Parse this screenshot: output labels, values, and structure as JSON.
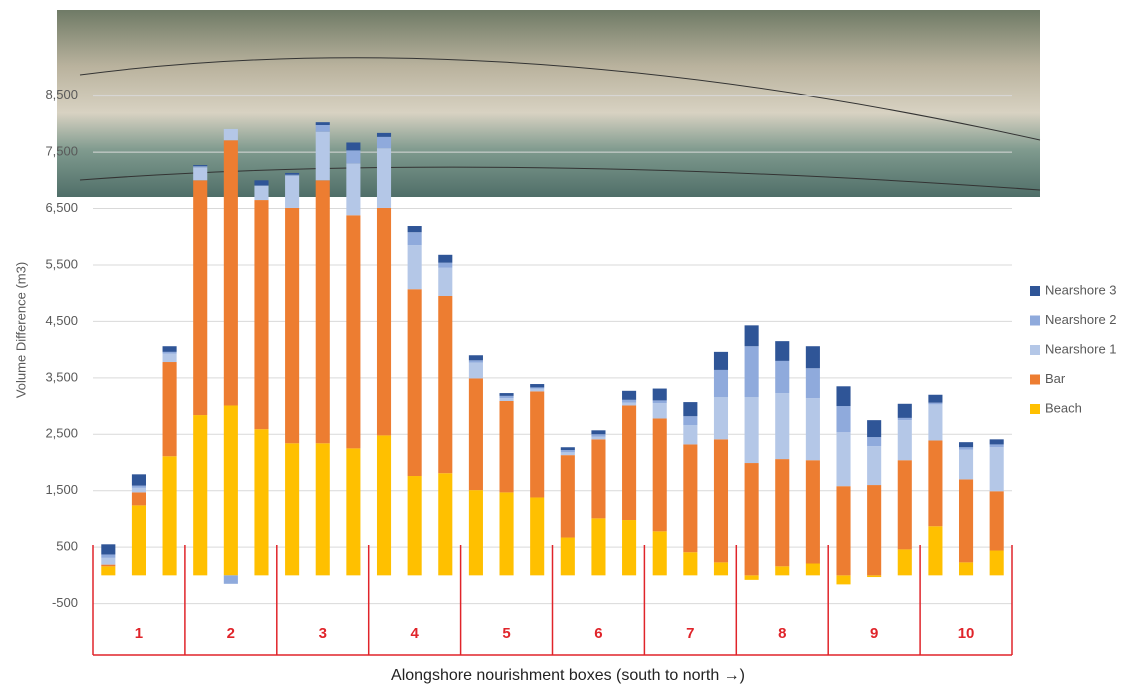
{
  "chart_data": {
    "type": "stacked_bar",
    "y_label": "Volume Difference (m3)",
    "x_label": "Alongshore nourishment boxes (south to north →)",
    "groups": [
      "1",
      "2",
      "3",
      "4",
      "5",
      "6",
      "7",
      "8",
      "9",
      "10"
    ],
    "categories": [
      null,
      null,
      null,
      null,
      null,
      null,
      null,
      null,
      null,
      null,
      null,
      null,
      null,
      null,
      null,
      null,
      null,
      null,
      null,
      null,
      null,
      null,
      null,
      null,
      null,
      null,
      null,
      null,
      null,
      null
    ],
    "series": [
      {
        "name": "Beach",
        "color": "#ffc000",
        "values": [
          160,
          1240,
          2110,
          2840,
          3010,
          2590,
          2340,
          2340,
          2250,
          2480,
          1760,
          1810,
          1510,
          1470,
          1380,
          670,
          1010,
          980,
          780,
          410,
          230,
          -80,
          160,
          210,
          -160,
          -30,
          460,
          870,
          230,
          440
        ]
      },
      {
        "name": "Bar",
        "color": "#ed7d31",
        "values": [
          30,
          230,
          1670,
          4160,
          4700,
          4060,
          4170,
          4660,
          4130,
          4030,
          3310,
          3140,
          1980,
          1620,
          1880,
          1460,
          1400,
          2030,
          2000,
          1910,
          2180,
          1990,
          1900,
          1830,
          1580,
          1600,
          1580,
          1520,
          1470,
          1050
        ]
      },
      {
        "name": "Nearshore 1",
        "color": "#b4c7e7",
        "values": [
          120,
          80,
          150,
          230,
          200,
          250,
          570,
          860,
          920,
          1060,
          780,
          500,
          280,
          50,
          50,
          50,
          50,
          50,
          270,
          340,
          750,
          1170,
          1170,
          1100,
          960,
          690,
          710,
          640,
          530,
          780
        ]
      },
      {
        "name": "Nearshore 2",
        "color": "#8faadc",
        "values": [
          60,
          40,
          30,
          20,
          -150,
          10,
          20,
          120,
          230,
          200,
          230,
          90,
          40,
          40,
          20,
          40,
          40,
          50,
          50,
          160,
          480,
          900,
          570,
          530,
          460,
          160,
          40,
          30,
          40,
          50
        ]
      },
      {
        "name": "Nearshore 3",
        "color": "#2f5597",
        "values": [
          180,
          200,
          100,
          20,
          0,
          90,
          30,
          50,
          140,
          70,
          110,
          140,
          90,
          50,
          60,
          50,
          70,
          160,
          210,
          250,
          320,
          370,
          350,
          390,
          350,
          300,
          250,
          140,
          90,
          90
        ]
      }
    ],
    "ylim": [
      -1500,
      10000
    ],
    "yticks": [
      {
        "value": -500,
        "label": "-500"
      },
      500,
      {
        "value": 1500,
        "label": "1,500"
      },
      {
        "value": 2500,
        "label": "2,500"
      },
      {
        "value": 3500,
        "label": "3,500"
      },
      {
        "value": 4500,
        "label": "4,500"
      },
      {
        "value": 5500,
        "label": "5,500"
      },
      {
        "value": 6500,
        "label": "6,500"
      },
      {
        "value": 7500,
        "label": "7,500"
      },
      {
        "value": 8500,
        "label": "8,500"
      }
    ],
    "grid": true,
    "legend": "right"
  }
}
